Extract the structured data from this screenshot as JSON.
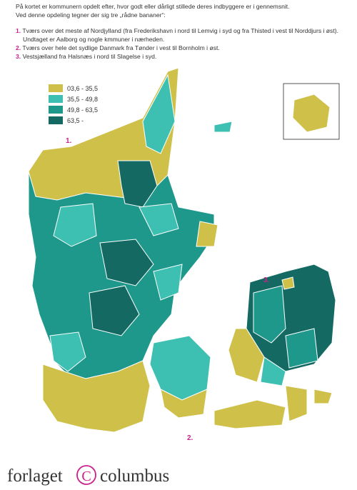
{
  "intro": {
    "lines": [
      "På kortet er kommunern opdelt efter, hvor godt eller dårligt stillede deres indbyggere er i gennemsnit.",
      "Ved denne opdeling tegner der sig tre „rådne bananer“:"
    ]
  },
  "items": [
    {
      "number": "1.",
      "text": "Tværs over det meste af Nordjylland (fra Frederikshavn i nord til Lemvig i syd og fra Thisted i vest til Norddjurs i øst). Undtaget er Aalborg og nogle kmmuner i nærheden."
    },
    {
      "number": "2.",
      "text": "Tværs over hele det sydlige Danmark fra Tønder i vest til Bornholm i øst."
    },
    {
      "number": "3.",
      "text": "Vestsjælland fra Halsnæs i nord til Slagelse i syd."
    }
  ],
  "legend": {
    "items": [
      {
        "label": "03,6 - 35,5",
        "color": "#cfc04a"
      },
      {
        "label": "35,5 - 49,8",
        "color": "#3dbfb2"
      },
      {
        "label": "49,8 - 63,5",
        "color": "#1f988c"
      },
      {
        "label": "63,5 -",
        "color": "#146a62"
      }
    ]
  },
  "map_labels": [
    "1.",
    "2.",
    "3."
  ],
  "logo": {
    "left": "forlaget",
    "symbol": "C",
    "right": "columbus"
  }
}
